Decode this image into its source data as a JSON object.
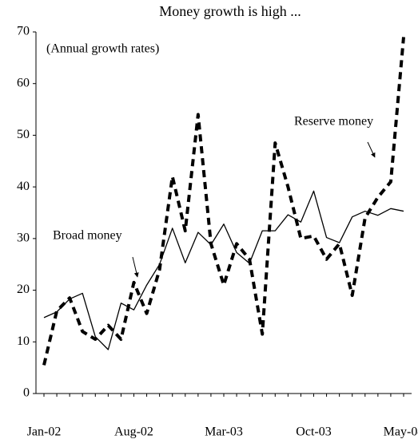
{
  "chart_data": {
    "type": "line",
    "title": "Money growth is high ...",
    "annotations": [
      "(Annual growth rates)",
      "Broad money",
      "Reserve money"
    ],
    "categories": [
      "Jan-02",
      null,
      null,
      null,
      null,
      null,
      null,
      "Aug-02",
      null,
      null,
      null,
      null,
      null,
      null,
      "Mar-03",
      null,
      null,
      null,
      null,
      null,
      null,
      "Oct-03",
      null,
      null,
      null,
      null,
      null,
      null,
      "May-04"
    ],
    "series": [
      {
        "name": "Broad money",
        "color": "#000000",
        "style": "solid",
        "values": [
          14.7,
          15.8,
          18.3,
          19.4,
          11.0,
          8.5,
          17.5,
          16.2,
          21.0,
          25.0,
          32.0,
          25.3,
          31.2,
          28.8,
          32.8,
          27.3,
          25.2,
          31.5,
          31.5,
          34.6,
          33.2,
          39.2,
          30.2,
          29.2,
          34.2,
          35.3,
          34.5,
          35.8,
          35.3
        ]
      },
      {
        "name": "Reserve money",
        "color": "#000000",
        "style": "dashed",
        "values": [
          5.5,
          16,
          18.5,
          12,
          10.5,
          13.2,
          10.5,
          21.5,
          15.5,
          24,
          42,
          31.5,
          54,
          29,
          21,
          29,
          26,
          11.5,
          48.5,
          40,
          30,
          30.5,
          26,
          29,
          19,
          34,
          38,
          41,
          69
        ]
      }
    ],
    "ylim": [
      0,
      70
    ],
    "yticks": [
      0,
      10,
      20,
      30,
      40,
      50,
      60,
      70
    ],
    "grid": false
  }
}
